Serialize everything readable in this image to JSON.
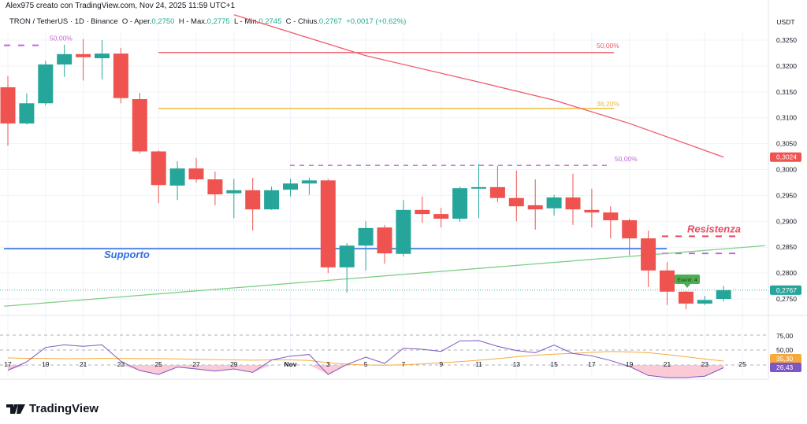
{
  "header": {
    "credit": "Alex975 creato con TradingView.com, Nov 24, 2025 11:59 UTC+1",
    "symbol": "TRON / TetherUS · 1D · Binance",
    "open_label": "O - Aper.",
    "open": "0,2750",
    "high_label": "H - Max.",
    "high": "0,2775",
    "low_label": "L - Min.",
    "low": "0,2745",
    "close_label": "C - Chius.",
    "close": "0,2767",
    "change": "+0,0017 (+0,62%)"
  },
  "price_axis": {
    "currency": "USDT",
    "ticks": [
      "0,3250",
      "0,3200",
      "0,3150",
      "0,3100",
      "0,3050",
      "0,3000",
      "0,2950",
      "0,2900",
      "0,2850",
      "0,2800",
      "0,2750"
    ],
    "tick_values": [
      0.325,
      0.32,
      0.315,
      0.31,
      0.305,
      0.3,
      0.295,
      0.29,
      0.285,
      0.28,
      0.275
    ],
    "ma_label": "0,3024",
    "ma_label_value": 0.3024,
    "last_label": "0,2767",
    "last_value": 0.2767
  },
  "rsi_axis": {
    "ticks": [
      "75,00",
      "50,00"
    ],
    "tick_values": [
      75,
      50
    ],
    "bands": [
      70,
      50,
      30
    ],
    "ma_label": "35,30",
    "rsi_label": "26,43"
  },
  "time_axis": {
    "labels": [
      "17",
      "19",
      "21",
      "23",
      "25",
      "27",
      "29",
      "Nov",
      "3",
      "5",
      "7",
      "9",
      "11",
      "13",
      "15",
      "17",
      "19",
      "21",
      "23",
      "25"
    ],
    "label_day_index": [
      0,
      2,
      4,
      6,
      8,
      10,
      12,
      15,
      17,
      19,
      21,
      23,
      25,
      27,
      29,
      31,
      33,
      35,
      37,
      39
    ]
  },
  "annotations": {
    "fib_top_left": {
      "label": "50,00%",
      "price": 0.324
    },
    "fib_50_red": {
      "label": "50,00%",
      "price": 0.3226
    },
    "fib_382": {
      "label": "38,20%",
      "price": 0.3118
    },
    "fib_50_purple": {
      "label": "50,00%",
      "price": 0.3008
    },
    "support": {
      "label": "Supporto",
      "price": 0.2847
    },
    "resistance": {
      "label": "Resistenza",
      "price": 0.2871
    },
    "resistance_low": {
      "price": 0.2838
    },
    "events": {
      "label": "Eventi: 4"
    }
  },
  "colors": {
    "up": "#26a69a",
    "down": "#ef5350",
    "ma_red": "#f05a66",
    "ma_green": "#7fcf86",
    "support": "#2f6fe0",
    "resistance": "#e84a62",
    "fib_purple": "#c06ad6",
    "fib_orange": "#f2b830",
    "rsi": "#7e57c2",
    "rsi_ma": "#f7a93b"
  },
  "chart_data": {
    "type": "candlestick",
    "dates": [
      "Oct 17",
      "Oct 18",
      "Oct 19",
      "Oct 20",
      "Oct 21",
      "Oct 22",
      "Oct 23",
      "Oct 24",
      "Oct 25",
      "Oct 26",
      "Oct 27",
      "Oct 28",
      "Oct 29",
      "Oct 30",
      "Oct 31",
      "Nov 1",
      "Nov 2",
      "Nov 3",
      "Nov 4",
      "Nov 5",
      "Nov 6",
      "Nov 7",
      "Nov 8",
      "Nov 9",
      "Nov 10",
      "Nov 11",
      "Nov 12",
      "Nov 13",
      "Nov 14",
      "Nov 15",
      "Nov 16",
      "Nov 17",
      "Nov 18",
      "Nov 19",
      "Nov 20",
      "Nov 21",
      "Nov 22",
      "Nov 23",
      "Nov 24"
    ],
    "ohlc": [
      [
        0.3159,
        0.318,
        0.3046,
        0.3089
      ],
      [
        0.3089,
        0.3147,
        0.3087,
        0.3128
      ],
      [
        0.3128,
        0.321,
        0.3124,
        0.3203
      ],
      [
        0.3203,
        0.3241,
        0.3179,
        0.3223
      ],
      [
        0.3223,
        0.3252,
        0.3172,
        0.3217
      ],
      [
        0.3215,
        0.325,
        0.3174,
        0.3224
      ],
      [
        0.3224,
        0.3235,
        0.3128,
        0.3138
      ],
      [
        0.3136,
        0.3148,
        0.3031,
        0.3035
      ],
      [
        0.3035,
        0.3037,
        0.2935,
        0.297
      ],
      [
        0.2969,
        0.3016,
        0.2941,
        0.3002
      ],
      [
        0.3002,
        0.3022,
        0.2975,
        0.2981
      ],
      [
        0.2981,
        0.2996,
        0.2931,
        0.2952
      ],
      [
        0.2954,
        0.2982,
        0.2906,
        0.296
      ],
      [
        0.296,
        0.2984,
        0.2882,
        0.2923
      ],
      [
        0.2923,
        0.2967,
        0.2922,
        0.296
      ],
      [
        0.2961,
        0.2982,
        0.2948,
        0.2973
      ],
      [
        0.2973,
        0.2984,
        0.2951,
        0.2979
      ],
      [
        0.2979,
        0.2982,
        0.28,
        0.2811
      ],
      [
        0.2811,
        0.2858,
        0.2762,
        0.2853
      ],
      [
        0.2853,
        0.29,
        0.2805,
        0.2887
      ],
      [
        0.2888,
        0.2893,
        0.2818,
        0.2838
      ],
      [
        0.2837,
        0.2941,
        0.2832,
        0.2922
      ],
      [
        0.2922,
        0.2948,
        0.2897,
        0.2914
      ],
      [
        0.2914,
        0.2926,
        0.2888,
        0.2905
      ],
      [
        0.2905,
        0.2967,
        0.2899,
        0.2964
      ],
      [
        0.2963,
        0.3011,
        0.2906,
        0.2966
      ],
      [
        0.2966,
        0.3007,
        0.2937,
        0.2945
      ],
      [
        0.2945,
        0.2998,
        0.29,
        0.2929
      ],
      [
        0.2931,
        0.2981,
        0.2884,
        0.2923
      ],
      [
        0.2925,
        0.2951,
        0.2911,
        0.2946
      ],
      [
        0.2946,
        0.2992,
        0.2893,
        0.2923
      ],
      [
        0.2922,
        0.2963,
        0.2888,
        0.2917
      ],
      [
        0.2917,
        0.2929,
        0.2867,
        0.2902
      ],
      [
        0.2902,
        0.2905,
        0.2834,
        0.2867
      ],
      [
        0.2867,
        0.2882,
        0.2773,
        0.2805
      ],
      [
        0.2805,
        0.2821,
        0.2738,
        0.2764
      ],
      [
        0.2764,
        0.2765,
        0.273,
        0.2741
      ],
      [
        0.2741,
        0.2756,
        0.2738,
        0.2748
      ],
      [
        0.275,
        0.2775,
        0.2745,
        0.2767
      ]
    ],
    "ma_red": [
      [
        12,
        0.3299
      ],
      [
        19,
        0.322
      ],
      [
        25,
        0.3169
      ],
      [
        29,
        0.3134
      ],
      [
        33,
        0.3089
      ],
      [
        38,
        0.3024
      ]
    ],
    "ma_green": [
      [
        -0.2,
        0.2736
      ],
      [
        40.2,
        0.2853
      ]
    ],
    "rsi": [
      22.9,
      34.2,
      53.5,
      57,
      55,
      57,
      35,
      22.6,
      17.4,
      27.2,
      24.7,
      21.9,
      24.7,
      20.2,
      36.7,
      41.9,
      44,
      17.4,
      30.7,
      40.5,
      32.1,
      52.5,
      51,
      48.2,
      62.3,
      62.6,
      55,
      49.3,
      46.5,
      56.7,
      45.4,
      42.3,
      36,
      28,
      16,
      13.2,
      13.2,
      15,
      26.43
    ],
    "rsi_ma": [
      39.5,
      39,
      38.8,
      38.4,
      38.6,
      38.8,
      38.8,
      38.6,
      38.5,
      38.2,
      37.8,
      37.2,
      36.8,
      36.5,
      36.8,
      36.9,
      36,
      33,
      31,
      30,
      29.8,
      30.3,
      31.5,
      33,
      34.5,
      36.5,
      38.5,
      41,
      43,
      44.5,
      45.5,
      47,
      48,
      47.5,
      46.5,
      44,
      41,
      38,
      35.3
    ],
    "ylim": [
      0.2725,
      0.328
    ],
    "rsi_ylim": [
      0,
      100
    ]
  }
}
